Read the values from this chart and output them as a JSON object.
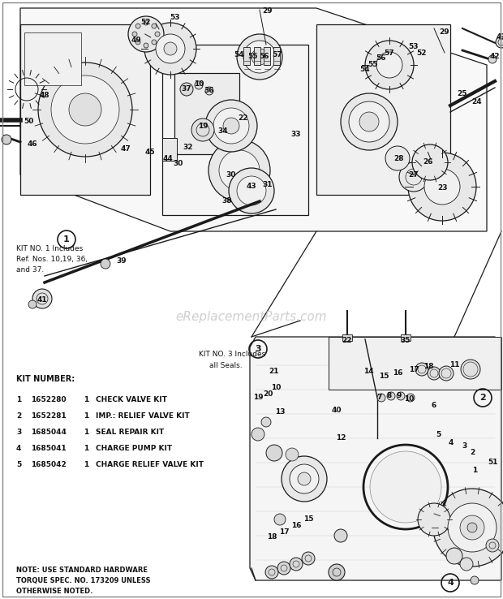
{
  "background_color": "#ffffff",
  "watermark": "eReplacementParts.com",
  "kit_no1_text": [
    "KIT NO. 1 Includes",
    "Ref. Nos. 10,19, 36,",
    "and 37."
  ],
  "kit_no3_text": [
    "KIT NO. 3 Includes",
    "all Seals."
  ],
  "kit_number_label": "KIT NUMBER:",
  "kit_entries": [
    {
      "num": "1",
      "part": "1652280",
      "qty": "1",
      "desc": "CHECK VALVE KIT"
    },
    {
      "num": "2",
      "part": "1652281",
      "qty": "1",
      "desc": "IMP.: RELIEF VALVE KIT"
    },
    {
      "num": "3",
      "part": "1685044",
      "qty": "1",
      "desc": "SEAL REPAIR KIT"
    },
    {
      "num": "4",
      "part": "1685041",
      "qty": "1",
      "desc": "CHARGE PUMP KIT"
    },
    {
      "num": "5",
      "part": "1685042",
      "qty": "1",
      "desc": "CHARGE RELIEF VALVE KIT"
    }
  ],
  "note_text": [
    "NOTE: USE STANDARD HARDWARE",
    "TORQUE SPEC. NO. 173209 UNLESS",
    "OTHERWISE NOTED."
  ],
  "fig_width": 6.2,
  "fig_height": 7.38,
  "dpi": 100
}
